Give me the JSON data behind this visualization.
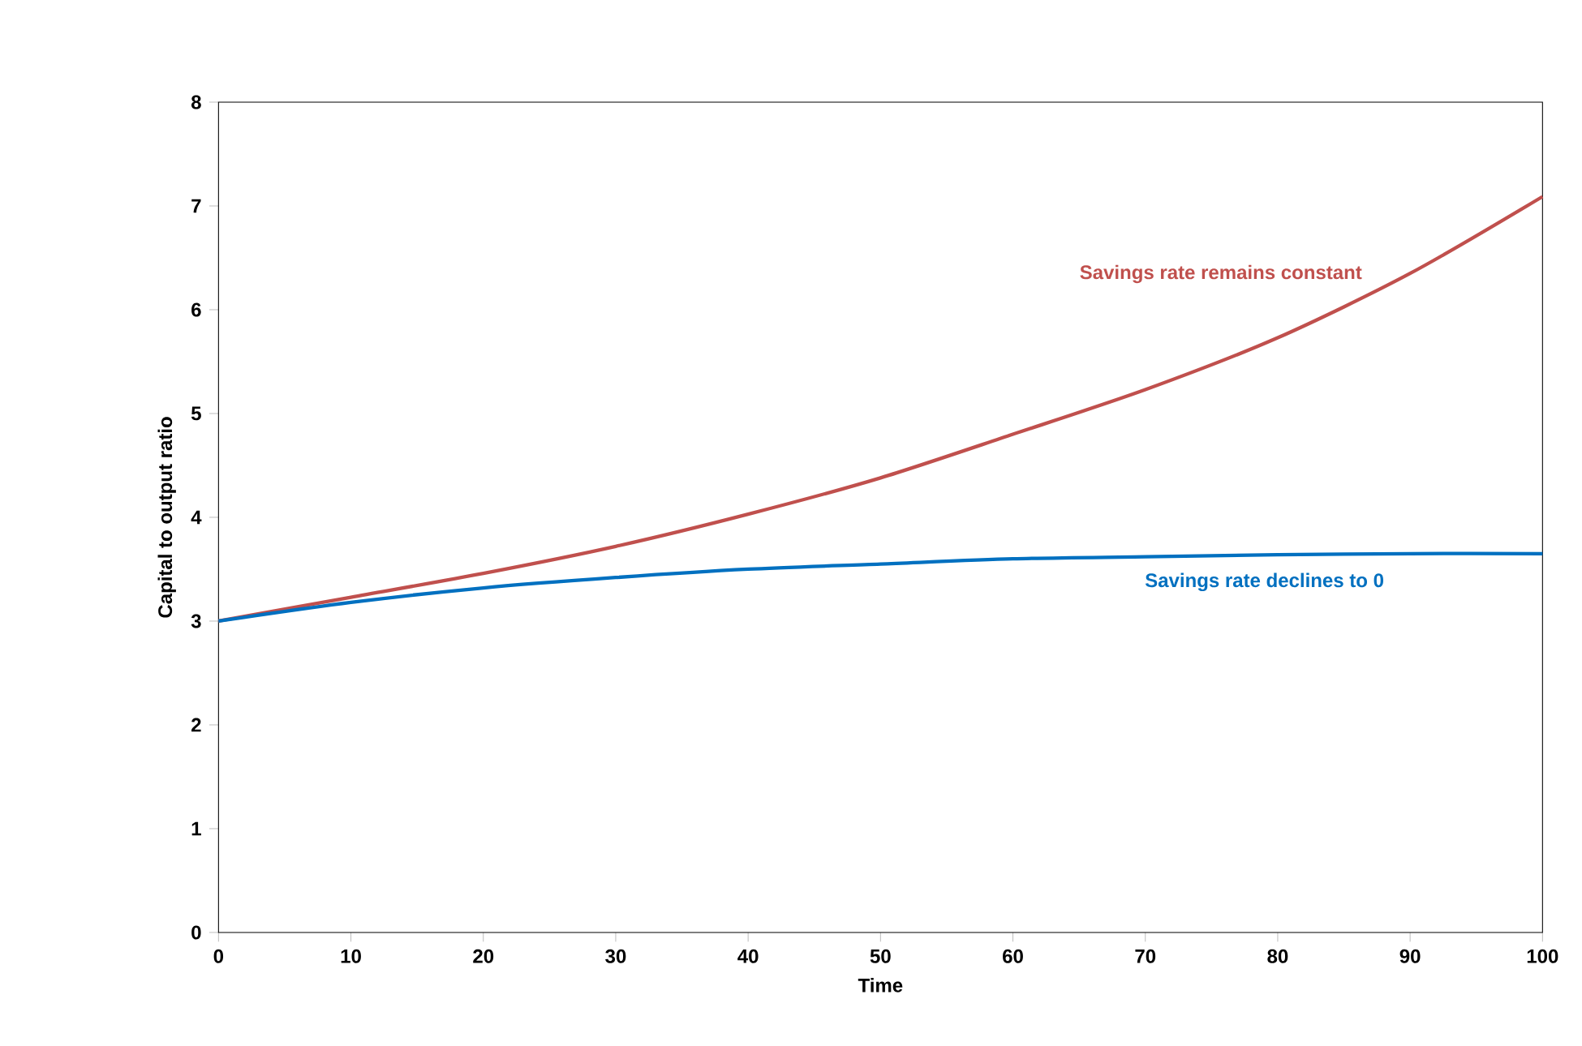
{
  "chart_data": {
    "type": "line",
    "xlabel": "Time",
    "ylabel": "Capital to output ratio",
    "xlim": [
      0,
      100
    ],
    "ylim": [
      0,
      8
    ],
    "xticks": [
      0,
      10,
      20,
      30,
      40,
      50,
      60,
      70,
      80,
      90,
      100
    ],
    "yticks": [
      0,
      1,
      2,
      3,
      4,
      5,
      6,
      7,
      8
    ],
    "grid": false,
    "legend": false,
    "marker": "none",
    "line_style": "solid",
    "x": [
      0,
      10,
      20,
      30,
      40,
      50,
      60,
      70,
      80,
      90,
      100
    ],
    "series": [
      {
        "name": "Savings rate remains constant",
        "color": "#c0504d",
        "values": [
          3,
          3.23,
          3.46,
          3.72,
          4.03,
          4.38,
          4.8,
          5.23,
          5.73,
          6.35,
          7.09
        ]
      },
      {
        "name": "Savings rate declines to 0",
        "color": "#0070c0",
        "values": [
          3,
          3.18,
          3.32,
          3.42,
          3.5,
          3.55,
          3.6,
          3.62,
          3.64,
          3.65,
          3.65
        ]
      }
    ]
  }
}
